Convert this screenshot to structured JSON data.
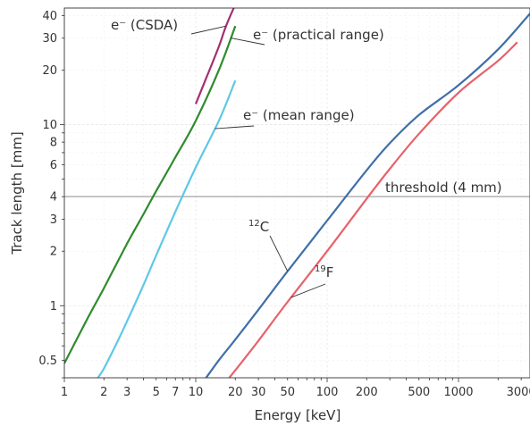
{
  "chart_data": {
    "type": "line",
    "title": "",
    "xlabel": "Energy [keV]",
    "ylabel": "Track length [mm]",
    "xscale": "log",
    "yscale": "log",
    "xlim": [
      1,
      3500
    ],
    "ylim": [
      0.4,
      44
    ],
    "grid": true,
    "x_tick_labels": [
      {
        "value": 1,
        "label": "1"
      },
      {
        "value": 2,
        "label": "2"
      },
      {
        "value": 3,
        "label": "3"
      },
      {
        "value": 5,
        "label": "5"
      },
      {
        "value": 7,
        "label": "7"
      },
      {
        "value": 10,
        "label": "10"
      },
      {
        "value": 20,
        "label": "20"
      },
      {
        "value": 30,
        "label": "30"
      },
      {
        "value": 50,
        "label": "50"
      },
      {
        "value": 100,
        "label": "100"
      },
      {
        "value": 200,
        "label": "200"
      },
      {
        "value": 500,
        "label": "500"
      },
      {
        "value": 1000,
        "label": "1000"
      },
      {
        "value": 3000,
        "label": "3000"
      }
    ],
    "y_tick_labels": [
      {
        "value": 0.5,
        "label": "0.5"
      },
      {
        "value": 1,
        "label": "1"
      },
      {
        "value": 2,
        "label": "2"
      },
      {
        "value": 3,
        "label": "3"
      },
      {
        "value": 4,
        "label": "4"
      },
      {
        "value": 6,
        "label": "6"
      },
      {
        "value": 8,
        "label": "8"
      },
      {
        "value": 10,
        "label": "10"
      },
      {
        "value": 20,
        "label": "20"
      },
      {
        "value": 30,
        "label": "30"
      },
      {
        "value": 40,
        "label": "40"
      }
    ],
    "series": [
      {
        "key": "e_csda",
        "color": "#a4306f",
        "x": [
          10,
          12,
          15,
          17,
          20
        ],
        "y": [
          13,
          18,
          27,
          35,
          46
        ]
      },
      {
        "key": "e_practical",
        "color": "#2e8b2e",
        "x": [
          1,
          1.5,
          2,
          3,
          4,
          5,
          7,
          10,
          15,
          20
        ],
        "y": [
          0.48,
          0.85,
          1.25,
          2.2,
          3.2,
          4.3,
          6.6,
          10.5,
          20,
          35
        ]
      },
      {
        "key": "e_mean",
        "color": "#5ec8e6",
        "x": [
          1.8,
          2,
          2.5,
          3,
          4,
          5,
          7,
          10,
          15,
          20
        ],
        "y": [
          0.4,
          0.45,
          0.62,
          0.82,
          1.3,
          1.9,
          3.3,
          5.8,
          10.5,
          17.5
        ]
      },
      {
        "key": "c12",
        "color": "#3f6fa8",
        "x": [
          12,
          15,
          20,
          30,
          50,
          100,
          200,
          300,
          500,
          1000,
          2000,
          3500
        ],
        "y": [
          0.4,
          0.5,
          0.65,
          0.95,
          1.55,
          2.95,
          5.6,
          7.9,
          11.3,
          16.5,
          26,
          41
        ]
      },
      {
        "key": "f19",
        "color": "#e8616a",
        "x": [
          18,
          20,
          30,
          50,
          100,
          200,
          300,
          500,
          1000,
          2000,
          2800
        ],
        "y": [
          0.4,
          0.44,
          0.64,
          1.05,
          2.0,
          3.9,
          5.7,
          8.9,
          15.0,
          22.5,
          28.5
        ]
      }
    ],
    "threshold": {
      "value": 4,
      "label": "threshold (4 mm)",
      "color": "#b8b8b8"
    },
    "annotations": [
      {
        "series": "e_csda",
        "text": "e⁻ (CSDA)",
        "sup": ""
      },
      {
        "series": "e_practical",
        "text": "e⁻ (practical range)",
        "sup": ""
      },
      {
        "series": "e_mean",
        "text": "e⁻ (mean range)",
        "sup": ""
      },
      {
        "series": "c12",
        "text": "C",
        "sup": "12"
      },
      {
        "series": "f19",
        "text": "F",
        "sup": "19"
      }
    ]
  }
}
